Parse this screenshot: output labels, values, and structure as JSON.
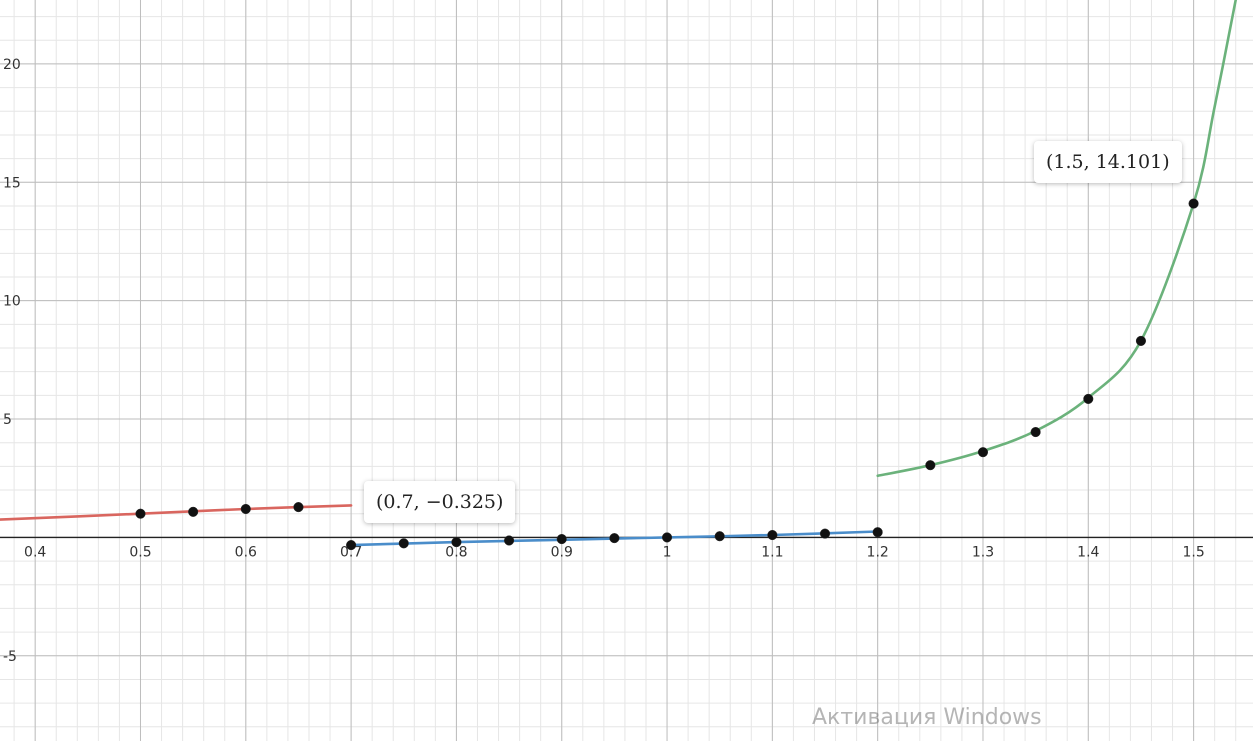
{
  "chart_data": {
    "type": "line",
    "xlim": [
      0.3666,
      1.5564
    ],
    "ylim": [
      -8.6,
      22.7
    ],
    "grid": true,
    "x_ticks": [
      {
        "value": 0.4,
        "label": "0.4"
      },
      {
        "value": 0.5,
        "label": "0.5"
      },
      {
        "value": 0.6,
        "label": "0.6"
      },
      {
        "value": 0.7,
        "label": "0.7"
      },
      {
        "value": 0.8,
        "label": "0.8"
      },
      {
        "value": 0.9,
        "label": "0.9"
      },
      {
        "value": 1.0,
        "label": "1"
      },
      {
        "value": 1.1,
        "label": "1.1"
      },
      {
        "value": 1.2,
        "label": "1.2"
      },
      {
        "value": 1.3,
        "label": "1.3"
      },
      {
        "value": 1.4,
        "label": "1.4"
      },
      {
        "value": 1.5,
        "label": "1.5"
      }
    ],
    "y_ticks": [
      {
        "value": 20,
        "label": "20"
      },
      {
        "value": 15,
        "label": "15"
      },
      {
        "value": 10,
        "label": "10"
      },
      {
        "value": 5,
        "label": "5"
      },
      {
        "value": -5,
        "label": "-5"
      }
    ],
    "series": [
      {
        "color": "#d9665f",
        "x": [
          0.3666,
          0.5,
          0.6,
          0.7
        ],
        "y": [
          0.75,
          1.0,
          1.2,
          1.35
        ]
      },
      {
        "color": "#4a8dca",
        "x": [
          0.7,
          0.8,
          0.9,
          1.0,
          1.1,
          1.2
        ],
        "y": [
          -0.325,
          -0.2,
          -0.1,
          0.0,
          0.1,
          0.25
        ]
      },
      {
        "color": "#6bb27b",
        "x": [
          1.2,
          1.25,
          1.3,
          1.35,
          1.4,
          1.45,
          1.5,
          1.52,
          1.54
        ],
        "y": [
          2.6,
          3.05,
          3.65,
          4.5,
          5.9,
          8.3,
          14.101,
          18.2,
          22.7
        ]
      }
    ],
    "points": [
      {
        "x": 0.5,
        "y": 1.0
      },
      {
        "x": 0.55,
        "y": 1.08
      },
      {
        "x": 0.6,
        "y": 1.2
      },
      {
        "x": 0.65,
        "y": 1.28
      },
      {
        "x": 0.7,
        "y": -0.325
      },
      {
        "x": 0.75,
        "y": -0.25
      },
      {
        "x": 0.8,
        "y": -0.2
      },
      {
        "x": 0.85,
        "y": -0.13
      },
      {
        "x": 0.9,
        "y": -0.07
      },
      {
        "x": 0.95,
        "y": -0.03
      },
      {
        "x": 1.0,
        "y": 0.0
      },
      {
        "x": 1.05,
        "y": 0.05
      },
      {
        "x": 1.1,
        "y": 0.1
      },
      {
        "x": 1.15,
        "y": 0.16
      },
      {
        "x": 1.2,
        "y": 0.22
      },
      {
        "x": 1.25,
        "y": 3.05
      },
      {
        "x": 1.3,
        "y": 3.6
      },
      {
        "x": 1.35,
        "y": 4.45
      },
      {
        "x": 1.4,
        "y": 5.85
      },
      {
        "x": 1.45,
        "y": 8.3
      },
      {
        "x": 1.5,
        "y": 14.101
      }
    ],
    "annotations": [
      {
        "text": "(0.7, −0.325)",
        "x": 0.7,
        "y": -0.325
      },
      {
        "text": "(1.5, 14.101)",
        "x": 1.5,
        "y": 14.101
      }
    ]
  },
  "watermark": "Активация Windows"
}
